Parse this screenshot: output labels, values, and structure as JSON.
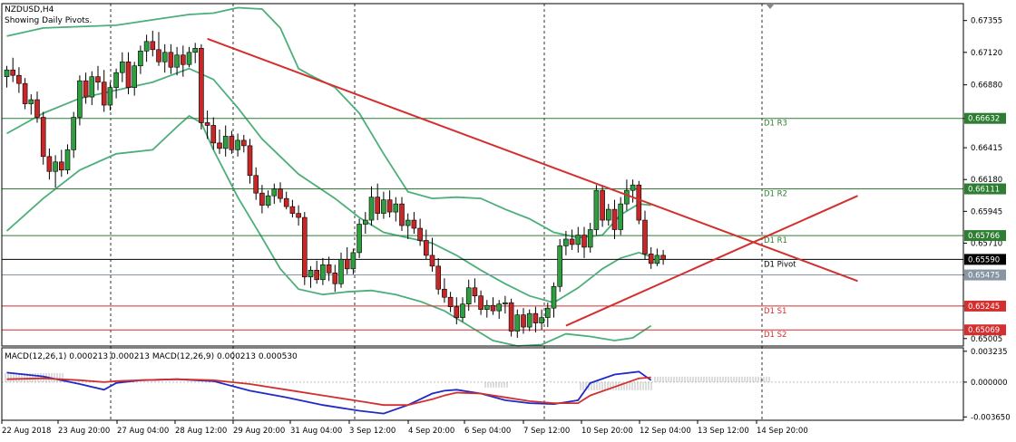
{
  "window": {
    "symbol_title": "NZDUSD,H4",
    "subtitle": "Showing Daily Pivots."
  },
  "chart_data": [
    {
      "type": "candlestick",
      "title": "NZDUSD,H4",
      "subtitle": "Showing Daily Pivots.",
      "ylim": [
        0.6495,
        0.6748
      ],
      "grid": "vertical-dashed",
      "y_ticks": [
        0.67355,
        0.6712,
        0.6688,
        0.66632,
        0.66415,
        0.6618,
        0.65945,
        0.6571,
        0.65475,
        0.65245,
        0.65005
      ],
      "x_ticks": [
        "22 Aug 2018",
        "23 Aug 20:00",
        "27 Aug 04:00",
        "28 Aug 12:00",
        "29 Aug 20:00",
        "31 Aug 04:00",
        "3 Sep 12:00",
        "4 Sep 20:00",
        "6 Sep 04:00",
        "7 Sep 12:00",
        "10 Sep 20:00",
        "12 Sep 04:00",
        "13 Sep 12:00",
        "14 Sep 20:00"
      ],
      "candles": [
        [
          0.6694,
          0.6702,
          0.6686,
          0.6699
        ],
        [
          0.6699,
          0.6708,
          0.669,
          0.6695
        ],
        [
          0.6695,
          0.6701,
          0.6682,
          0.6689
        ],
        [
          0.6689,
          0.6693,
          0.667,
          0.6674
        ],
        [
          0.6674,
          0.6681,
          0.6666,
          0.6677
        ],
        [
          0.6677,
          0.6683,
          0.666,
          0.6664
        ],
        [
          0.6664,
          0.6668,
          0.6629,
          0.6635
        ],
        [
          0.6635,
          0.6641,
          0.6618,
          0.6624
        ],
        [
          0.6624,
          0.6636,
          0.6612,
          0.6631
        ],
        [
          0.6631,
          0.664,
          0.662,
          0.6625
        ],
        [
          0.6625,
          0.6644,
          0.6622,
          0.664
        ],
        [
          0.664,
          0.6668,
          0.6634,
          0.6664
        ],
        [
          0.6664,
          0.6695,
          0.6658,
          0.6691
        ],
        [
          0.6691,
          0.6697,
          0.6674,
          0.6679
        ],
        [
          0.6679,
          0.6698,
          0.6673,
          0.6694
        ],
        [
          0.6694,
          0.6702,
          0.6684,
          0.669
        ],
        [
          0.669,
          0.6699,
          0.6668,
          0.6673
        ],
        [
          0.6673,
          0.669,
          0.6669,
          0.6686
        ],
        [
          0.6686,
          0.67,
          0.6678,
          0.6697
        ],
        [
          0.6697,
          0.6712,
          0.669,
          0.6705
        ],
        [
          0.6705,
          0.6712,
          0.6681,
          0.6686
        ],
        [
          0.6686,
          0.6705,
          0.668,
          0.6702
        ],
        [
          0.6702,
          0.6717,
          0.6696,
          0.6713
        ],
        [
          0.6713,
          0.6725,
          0.6705,
          0.672
        ],
        [
          0.672,
          0.6728,
          0.6709,
          0.6714
        ],
        [
          0.6714,
          0.6727,
          0.6702,
          0.6705
        ],
        [
          0.6705,
          0.6718,
          0.6697,
          0.6712
        ],
        [
          0.6712,
          0.6718,
          0.6696,
          0.6701
        ],
        [
          0.6701,
          0.6716,
          0.6695,
          0.671
        ],
        [
          0.671,
          0.6717,
          0.6694,
          0.6703
        ],
        [
          0.6703,
          0.6716,
          0.6701,
          0.6712
        ],
        [
          0.6712,
          0.6719,
          0.6704,
          0.6715
        ],
        [
          0.6715,
          0.6718,
          0.6655,
          0.666
        ],
        [
          0.666,
          0.6669,
          0.6648,
          0.6658
        ],
        [
          0.6658,
          0.6664,
          0.664,
          0.6645
        ],
        [
          0.6645,
          0.6655,
          0.6637,
          0.6641
        ],
        [
          0.6641,
          0.6658,
          0.6635,
          0.665
        ],
        [
          0.665,
          0.6654,
          0.6637,
          0.664
        ],
        [
          0.664,
          0.6652,
          0.6635,
          0.6647
        ],
        [
          0.6647,
          0.6651,
          0.6638,
          0.6643
        ],
        [
          0.6643,
          0.6648,
          0.6615,
          0.6621
        ],
        [
          0.6621,
          0.6627,
          0.6603,
          0.6608
        ],
        [
          0.6608,
          0.6614,
          0.6593,
          0.6599
        ],
        [
          0.6599,
          0.661,
          0.6597,
          0.6606
        ],
        [
          0.6606,
          0.6615,
          0.66,
          0.6611
        ],
        [
          0.6611,
          0.6616,
          0.6601,
          0.6604
        ],
        [
          0.6604,
          0.6609,
          0.6596,
          0.6598
        ],
        [
          0.6598,
          0.6603,
          0.659,
          0.6593
        ],
        [
          0.6593,
          0.6599,
          0.6584,
          0.659
        ],
        [
          0.659,
          0.6594,
          0.654,
          0.6546
        ],
        [
          0.6546,
          0.6554,
          0.6538,
          0.6551
        ],
        [
          0.6551,
          0.6558,
          0.6541,
          0.6544
        ],
        [
          0.6544,
          0.656,
          0.654,
          0.6555
        ],
        [
          0.6555,
          0.6561,
          0.6543,
          0.6549
        ],
        [
          0.6549,
          0.6555,
          0.6535,
          0.6541
        ],
        [
          0.6541,
          0.6564,
          0.6538,
          0.6559
        ],
        [
          0.6559,
          0.6568,
          0.6548,
          0.6552
        ],
        [
          0.6552,
          0.6567,
          0.6548,
          0.6564
        ],
        [
          0.6564,
          0.6589,
          0.656,
          0.6585
        ],
        [
          0.6585,
          0.6594,
          0.6578,
          0.6588
        ],
        [
          0.6588,
          0.6613,
          0.6584,
          0.6605
        ],
        [
          0.6605,
          0.6615,
          0.6588,
          0.6593
        ],
        [
          0.6593,
          0.6609,
          0.6589,
          0.6603
        ],
        [
          0.6603,
          0.661,
          0.659,
          0.6594
        ],
        [
          0.6594,
          0.6605,
          0.6587,
          0.66
        ],
        [
          0.66,
          0.6605,
          0.658,
          0.6584
        ],
        [
          0.6584,
          0.6593,
          0.6574,
          0.6588
        ],
        [
          0.6588,
          0.6594,
          0.6578,
          0.6582
        ],
        [
          0.6582,
          0.6589,
          0.6569,
          0.6573
        ],
        [
          0.6573,
          0.6581,
          0.6559,
          0.6562
        ],
        [
          0.6562,
          0.6575,
          0.655,
          0.6554
        ],
        [
          0.6554,
          0.656,
          0.6533,
          0.6537
        ],
        [
          0.6537,
          0.6545,
          0.6527,
          0.6531
        ],
        [
          0.6531,
          0.6535,
          0.652,
          0.6524
        ],
        [
          0.6524,
          0.6531,
          0.6511,
          0.6516
        ],
        [
          0.6516,
          0.6531,
          0.6513,
          0.6526
        ],
        [
          0.6526,
          0.6544,
          0.6521,
          0.6538
        ],
        [
          0.6538,
          0.6545,
          0.6527,
          0.6532
        ],
        [
          0.6532,
          0.6536,
          0.6518,
          0.6522
        ],
        [
          0.6522,
          0.6529,
          0.6516,
          0.6525
        ],
        [
          0.6525,
          0.6531,
          0.6518,
          0.6521
        ],
        [
          0.6521,
          0.6529,
          0.6515,
          0.6526
        ],
        [
          0.6526,
          0.6532,
          0.6519,
          0.6527
        ],
        [
          0.6527,
          0.653,
          0.6502,
          0.6506
        ],
        [
          0.6506,
          0.6522,
          0.6501,
          0.6518
        ],
        [
          0.6518,
          0.6523,
          0.6504,
          0.6509
        ],
        [
          0.6509,
          0.6522,
          0.6506,
          0.6519
        ],
        [
          0.6519,
          0.6524,
          0.6505,
          0.6512
        ],
        [
          0.6512,
          0.6522,
          0.6507,
          0.6516
        ],
        [
          0.6516,
          0.6527,
          0.6509,
          0.6523
        ],
        [
          0.6523,
          0.6542,
          0.6516,
          0.6539
        ],
        [
          0.6539,
          0.6574,
          0.6535,
          0.6569
        ],
        [
          0.6569,
          0.658,
          0.6562,
          0.6574
        ],
        [
          0.6574,
          0.6581,
          0.6566,
          0.657
        ],
        [
          0.657,
          0.6583,
          0.6564,
          0.6577
        ],
        [
          0.6577,
          0.6583,
          0.656,
          0.6568
        ],
        [
          0.6568,
          0.6586,
          0.6564,
          0.6581
        ],
        [
          0.6581,
          0.6614,
          0.6577,
          0.661
        ],
        [
          0.661,
          0.6614,
          0.6583,
          0.6588
        ],
        [
          0.6588,
          0.66,
          0.6584,
          0.6596
        ],
        [
          0.6596,
          0.6603,
          0.6574,
          0.6581
        ],
        [
          0.6581,
          0.6605,
          0.6577,
          0.66
        ],
        [
          0.66,
          0.6618,
          0.6595,
          0.661
        ],
        [
          0.661,
          0.6618,
          0.6601,
          0.6614
        ],
        [
          0.6614,
          0.6617,
          0.6585,
          0.6588
        ],
        [
          0.6588,
          0.6595,
          0.6559,
          0.6563
        ],
        [
          0.6563,
          0.6568,
          0.6552,
          0.6556
        ],
        [
          0.6556,
          0.6567,
          0.6554,
          0.6562
        ],
        [
          0.6562,
          0.6566,
          0.6555,
          0.6559
        ]
      ],
      "bollinger_bands": {
        "upper": [
          [
            0,
            0.6724
          ],
          [
            6,
            0.673
          ],
          [
            12,
            0.6731
          ],
          [
            18,
            0.6732
          ],
          [
            24,
            0.6736
          ],
          [
            30,
            0.674
          ],
          [
            34,
            0.6741
          ],
          [
            38,
            0.6745
          ],
          [
            42,
            0.6744
          ],
          [
            45,
            0.673
          ],
          [
            48,
            0.67
          ],
          [
            50,
            0.6695
          ],
          [
            54,
            0.6686
          ],
          [
            58,
            0.6667
          ],
          [
            62,
            0.6637
          ],
          [
            66,
            0.6609
          ],
          [
            70,
            0.6604
          ],
          [
            74,
            0.6605
          ],
          [
            78,
            0.6604
          ],
          [
            82,
            0.6596
          ],
          [
            86,
            0.6589
          ],
          [
            90,
            0.6579
          ],
          [
            94,
            0.6575
          ],
          [
            98,
            0.6577
          ],
          [
            101,
            0.6592
          ],
          [
            104,
            0.66
          ],
          [
            106,
            0.6599
          ]
        ],
        "middle": [
          [
            0,
            0.6652
          ],
          [
            6,
            0.6667
          ],
          [
            12,
            0.6678
          ],
          [
            18,
            0.6684
          ],
          [
            24,
            0.669
          ],
          [
            30,
            0.67
          ],
          [
            34,
            0.6692
          ],
          [
            38,
            0.6671
          ],
          [
            42,
            0.6648
          ],
          [
            45,
            0.6635
          ],
          [
            48,
            0.6622
          ],
          [
            54,
            0.6604
          ],
          [
            58,
            0.659
          ],
          [
            62,
            0.6579
          ],
          [
            66,
            0.6575
          ],
          [
            70,
            0.6571
          ],
          [
            74,
            0.6562
          ],
          [
            78,
            0.6551
          ],
          [
            82,
            0.6541
          ],
          [
            86,
            0.6532
          ],
          [
            90,
            0.6527
          ],
          [
            94,
            0.6538
          ],
          [
            98,
            0.6552
          ],
          [
            101,
            0.656
          ],
          [
            104,
            0.6564
          ],
          [
            106,
            0.6561
          ]
        ],
        "lower": [
          [
            0,
            0.658
          ],
          [
            6,
            0.6604
          ],
          [
            12,
            0.6625
          ],
          [
            18,
            0.6637
          ],
          [
            24,
            0.664
          ],
          [
            28,
            0.6657
          ],
          [
            30,
            0.6665
          ],
          [
            32,
            0.666
          ],
          [
            34,
            0.664
          ],
          [
            38,
            0.6605
          ],
          [
            42,
            0.6575
          ],
          [
            45,
            0.6552
          ],
          [
            48,
            0.6537
          ],
          [
            52,
            0.6533
          ],
          [
            56,
            0.6535
          ],
          [
            60,
            0.6536
          ],
          [
            64,
            0.6533
          ],
          [
            68,
            0.6528
          ],
          [
            72,
            0.6521
          ],
          [
            76,
            0.651
          ],
          [
            80,
            0.6499
          ],
          [
            84,
            0.6495
          ],
          [
            88,
            0.6496
          ],
          [
            92,
            0.6504
          ],
          [
            96,
            0.6502
          ],
          [
            100,
            0.6499
          ],
          [
            103,
            0.6501
          ],
          [
            106,
            0.651
          ]
        ]
      },
      "trend_lines": [
        {
          "from": [
            33,
            0.6722
          ],
          "to": [
            140,
            0.6543
          ]
        },
        {
          "from": [
            92,
            0.651
          ],
          "to": [
            140,
            0.6606
          ]
        }
      ],
      "pivot_levels": [
        {
          "label": "D1 R3",
          "value": 0.66632,
          "price_tag": "0.66632",
          "color": "#2e7d32"
        },
        {
          "label": "D1 R2",
          "value": 0.66111,
          "price_tag": "0.66111",
          "color": "#2e7d32"
        },
        {
          "label": "D1 R1",
          "value": 0.65766,
          "price_tag": "0.65766",
          "color": "#2e7d32"
        },
        {
          "label": "D1 Pivot",
          "value": 0.6559,
          "price_tag": "0.65590",
          "color": "#000000"
        },
        {
          "label": "D1 S1",
          "value": 0.65245,
          "price_tag": "0.65245",
          "color": "#d32f2f"
        },
        {
          "label": "D1 S2",
          "value": 0.65069,
          "price_tag": "0.65069",
          "color": "#d32f2f"
        }
      ],
      "current_price": {
        "value": 0.65475,
        "tag": "0.65475",
        "color": "#8895a3"
      },
      "colors": {
        "bull": "#2e9e3f",
        "bear": "#c62828",
        "band": "#4caf7a",
        "trend": "#d32f2f"
      }
    },
    {
      "type": "line",
      "title": "MACD(12,26,1) 0.000213 0.000213 MACD(12,26,9) 0.000213 0.000530",
      "ylim": [
        -0.004,
        0.0036
      ],
      "y_ticks": [
        0.003235,
        0.0,
        -0.00365
      ],
      "x": [
        0,
        6,
        12,
        16,
        18,
        22,
        28,
        34,
        40,
        46,
        52,
        58,
        62,
        66,
        70,
        72,
        74,
        78,
        82,
        86,
        90,
        94,
        96,
        100,
        104,
        106
      ],
      "series": [
        {
          "name": "MACD(12,26,1)",
          "color": "#1e2ac8",
          "values": [
            0.001,
            0.0006,
            -0.0002,
            -0.0008,
            -0.0001,
            0.0002,
            0.0003,
            0.0001,
            -0.0009,
            -0.0016,
            -0.0024,
            -0.003,
            -0.0033,
            -0.0024,
            -0.0012,
            -0.0009,
            -0.0008,
            -0.0012,
            -0.0019,
            -0.0022,
            -0.0023,
            -0.0019,
            -0.0001,
            0.0008,
            0.0011,
            0.0002
          ]
        },
        {
          "name": "MACD(12,26,9)",
          "color": "#d32f2f",
          "values": [
            0.0003,
            0.0004,
            0.0002,
            0.0,
            0.0001,
            0.0002,
            0.0003,
            0.0002,
            -0.0002,
            -0.0008,
            -0.0014,
            -0.002,
            -0.0024,
            -0.0024,
            -0.0018,
            -0.0014,
            -0.0011,
            -0.0012,
            -0.0016,
            -0.002,
            -0.0022,
            -0.0022,
            -0.0014,
            -0.0005,
            0.0004,
            0.0005
          ]
        }
      ]
    }
  ]
}
